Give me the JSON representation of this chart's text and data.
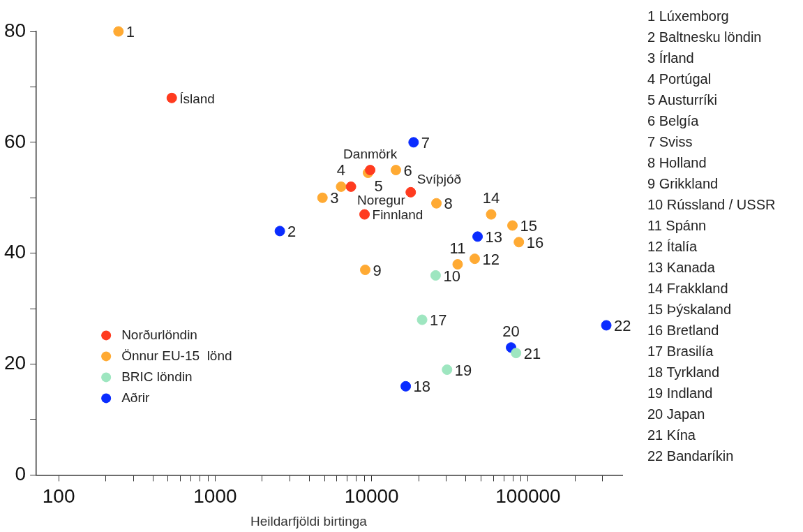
{
  "chart_data": {
    "type": "scatter",
    "xlabel": "Heildarfjöldi birtinga",
    "log": "x",
    "grid": false,
    "legend": "bottom left",
    "marker": "circle",
    "xlim": [
      72,
      400000
    ],
    "ylim": [
      0,
      80
    ],
    "xticks": [
      100,
      {
        "value": 200,
        "label": null
      },
      {
        "value": 300,
        "label": null
      },
      {
        "value": 400,
        "label": null
      },
      {
        "value": 500,
        "label": null
      },
      {
        "value": 600,
        "label": null
      },
      {
        "value": 700,
        "label": null
      },
      {
        "value": 800,
        "label": null
      },
      {
        "value": 900,
        "label": null
      },
      1000,
      {
        "value": 2000,
        "label": null
      },
      {
        "value": 3000,
        "label": null
      },
      {
        "value": 4000,
        "label": null
      },
      {
        "value": 5000,
        "label": null
      },
      {
        "value": 6000,
        "label": null
      },
      {
        "value": 7000,
        "label": null
      },
      {
        "value": 8000,
        "label": null
      },
      {
        "value": 9000,
        "label": null
      },
      10000,
      {
        "value": 20000,
        "label": null
      },
      {
        "value": 30000,
        "label": null
      },
      {
        "value": 40000,
        "label": null
      },
      {
        "value": 50000,
        "label": null
      },
      {
        "value": 60000,
        "label": null
      },
      {
        "value": 70000,
        "label": null
      },
      {
        "value": 80000,
        "label": null
      },
      {
        "value": 90000,
        "label": null
      },
      100000,
      {
        "value": 200000,
        "label": null
      },
      {
        "value": 300000,
        "label": null
      }
    ],
    "yticks": [
      0,
      {
        "value": 10,
        "label": null
      },
      20,
      {
        "value": 30,
        "label": null
      },
      40,
      {
        "value": 50,
        "label": null
      },
      60,
      {
        "value": 70,
        "label": null
      },
      80
    ],
    "series": [
      {
        "name": "Norðurlöndin",
        "color": "#ff3b1f",
        "x": [
          528,
          7380,
          9790,
          17780,
          9010
        ],
        "values": [
          68,
          52,
          55,
          51,
          47
        ]
      },
      {
        "name": "Önnur EU-15  lönd",
        "color": "#ffaa33",
        "x": [
          241,
          4850,
          6380,
          9480,
          14290,
          25950,
          9100,
          35460,
          45600,
          58040,
          79430,
          87300
        ],
        "values": [
          80,
          50,
          52,
          54.5,
          55,
          49,
          37,
          38,
          39,
          47,
          45,
          42
        ]
      },
      {
        "name": "BRIC löndin",
        "color": "#9ee6c0",
        "x": [
          25650,
          21020,
          30330,
          83750
        ],
        "values": [
          36,
          28,
          19,
          22
        ]
      },
      {
        "name": "Aðrir",
        "color": "#0a2cff",
        "x": [
          2590,
          18540,
          47550,
          16520,
          77800,
          316000
        ],
        "values": [
          44,
          60,
          43,
          16,
          23,
          27
        ]
      }
    ],
    "annotations": [
      {
        "text": "1",
        "x": 241,
        "y": 80
      },
      {
        "text": "Ísland",
        "x": 528,
        "y": 68
      },
      {
        "text": "2",
        "x": 2590,
        "y": 44
      },
      {
        "text": "3",
        "x": 4850,
        "y": 50
      },
      {
        "text": "4",
        "x": 6380,
        "y": 52
      },
      {
        "text": "Danmörk",
        "x": 9790,
        "y": 55
      },
      {
        "text": "5",
        "x": 9480,
        "y": 54.5
      },
      {
        "text": "6",
        "x": 14290,
        "y": 55
      },
      {
        "text": "Svíþjóð",
        "x": 17780,
        "y": 51
      },
      {
        "text": "Noregur",
        "x": 7380,
        "y": 52
      },
      {
        "text": "Finnland",
        "x": 9010,
        "y": 47
      },
      {
        "text": "7",
        "x": 18540,
        "y": 60
      },
      {
        "text": "8",
        "x": 25950,
        "y": 49
      },
      {
        "text": "9",
        "x": 9100,
        "y": 37
      },
      {
        "text": "10",
        "x": 25650,
        "y": 36
      },
      {
        "text": "11",
        "x": 35460,
        "y": 38
      },
      {
        "text": "12",
        "x": 45600,
        "y": 39
      },
      {
        "text": "13",
        "x": 47550,
        "y": 43
      },
      {
        "text": "14",
        "x": 58040,
        "y": 47
      },
      {
        "text": "15",
        "x": 79430,
        "y": 45
      },
      {
        "text": "16",
        "x": 87300,
        "y": 42
      },
      {
        "text": "17",
        "x": 21020,
        "y": 28
      },
      {
        "text": "18",
        "x": 16520,
        "y": 16
      },
      {
        "text": "19",
        "x": 30330,
        "y": 19
      },
      {
        "text": "20",
        "x": 77800,
        "y": 23
      },
      {
        "text": "21",
        "x": 83750,
        "y": 22
      },
      {
        "text": "22",
        "x": 316000,
        "y": 27
      },
      "1 Lúxemborg",
      "2 Baltnesku löndin",
      "3 Írland",
      "4 Portúgal",
      "5 Austurríki",
      "6 Belgía",
      "7 Sviss",
      "8 Holland",
      "9 Grikkland",
      "10 Rússland / USSR",
      "11 Spánn",
      "12 Ítalía",
      "13 Kanada",
      "14 Frakkland",
      "15 Þýskaland",
      "16 Bretland",
      "17 Brasilía",
      "18 Tyrkland",
      "19 Indland",
      "20 Japan",
      "21 Kína",
      "22 Bandaríkin"
    ]
  }
}
